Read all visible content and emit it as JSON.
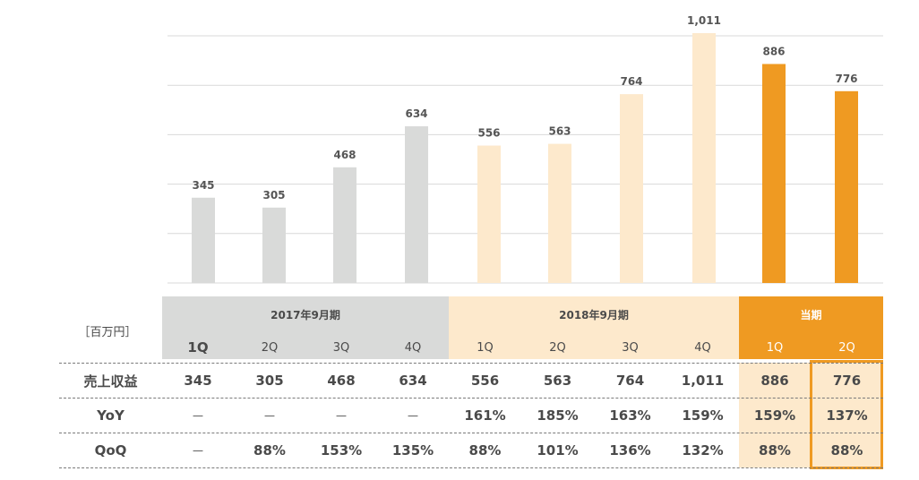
{
  "chart_data": {
    "type": "bar",
    "categories": [
      "1Q",
      "2Q",
      "3Q",
      "4Q",
      "1Q",
      "2Q",
      "3Q",
      "4Q",
      "1Q",
      "2Q"
    ],
    "values": [
      345,
      305,
      468,
      634,
      556,
      563,
      764,
      1011,
      886,
      776
    ],
    "value_labels": [
      "345",
      "305",
      "468",
      "634",
      "556",
      "563",
      "764",
      "1,011",
      "886",
      "776"
    ],
    "groups": [
      {
        "name": "2017年9月期",
        "count": 4,
        "color": "#d9dad9"
      },
      {
        "name": "2018年9月期",
        "count": 4,
        "color": "#fde9cc"
      },
      {
        "name": "当期",
        "count": 2,
        "color": "#ef9a22"
      }
    ],
    "ylim": [
      0,
      1000
    ],
    "grid": true,
    "title": "",
    "xlabel": "",
    "ylabel": ""
  },
  "table": {
    "unit": "［百万円］",
    "periods": [
      "2017年9月期",
      "2018年9月期",
      "当期"
    ],
    "quarters": [
      "1Q",
      "2Q",
      "3Q",
      "4Q",
      "1Q",
      "2Q",
      "3Q",
      "4Q",
      "1Q",
      "2Q"
    ],
    "rows": [
      {
        "label": "売上収益",
        "cells": [
          "345",
          "305",
          "468",
          "634",
          "556",
          "563",
          "764",
          "1,011",
          "886",
          "776"
        ]
      },
      {
        "label": "YoY",
        "cells": [
          "－",
          "－",
          "－",
          "－",
          "161%",
          "185%",
          "163%",
          "159%",
          "159%",
          "137%"
        ]
      },
      {
        "label": "QoQ",
        "cells": [
          "－",
          "88%",
          "153%",
          "135%",
          "88%",
          "101%",
          "136%",
          "132%",
          "88%",
          "88%"
        ]
      }
    ]
  },
  "colors": {
    "prior_period": "#d9dad9",
    "last_period": "#fde9cc",
    "current_period": "#ef9a22",
    "header_text_light": "#ffffff",
    "text": "#4a4a4a"
  }
}
